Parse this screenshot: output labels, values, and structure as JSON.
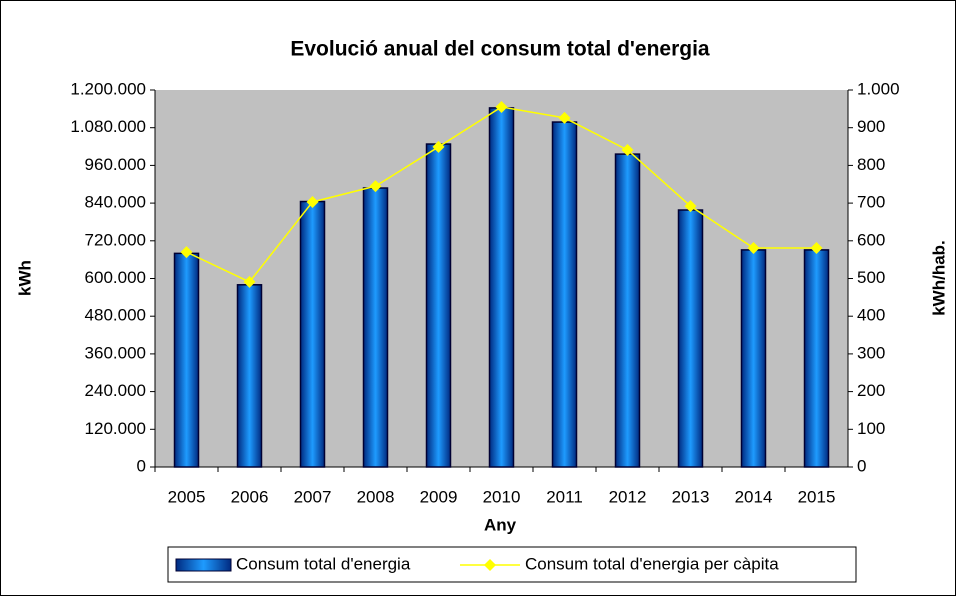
{
  "chart_data": {
    "type": "bar",
    "title": "Evolució anual del consum total d'energia",
    "xlabel": "Any",
    "ylabel": "kWh",
    "y2label": "kWh/hab.",
    "categories": [
      "2005",
      "2006",
      "2007",
      "2008",
      "2009",
      "2010",
      "2011",
      "2012",
      "2013",
      "2014",
      "2015"
    ],
    "series": [
      {
        "name": "Consum total d'energia",
        "type": "bar",
        "color": "#1e9bff",
        "values": [
          680000,
          580000,
          845000,
          888000,
          1028000,
          1143000,
          1098000,
          996000,
          818000,
          691000,
          691000
        ]
      },
      {
        "name": "Consum total d'energia per càpita",
        "type": "line",
        "axis": "y2",
        "color": "#ffff00",
        "values": [
          570,
          491,
          703,
          745,
          849,
          955,
          926,
          841,
          692,
          581,
          581
        ]
      }
    ],
    "ylim": [
      0,
      1200000
    ],
    "yticks": [
      0,
      {
        "value": 120000,
        "label": "120.000"
      },
      {
        "value": 240000,
        "label": "240.000"
      },
      {
        "value": 360000,
        "label": "360.000"
      },
      {
        "value": 480000,
        "label": "480.000"
      },
      {
        "value": 600000,
        "label": "600.000"
      },
      {
        "value": 720000,
        "label": "720.000"
      },
      {
        "value": 840000,
        "label": "840.000"
      },
      {
        "value": 960000,
        "label": "960.000"
      },
      {
        "value": 1080000,
        "label": "1.080.000"
      },
      {
        "value": 1200000,
        "label": "1.200.000"
      }
    ],
    "y2lim": [
      0,
      1000
    ],
    "y2ticks": [
      0,
      100,
      200,
      300,
      400,
      500,
      600,
      700,
      800,
      900,
      {
        "value": 1000,
        "label": "1.000"
      }
    ],
    "legend": "bottom"
  }
}
